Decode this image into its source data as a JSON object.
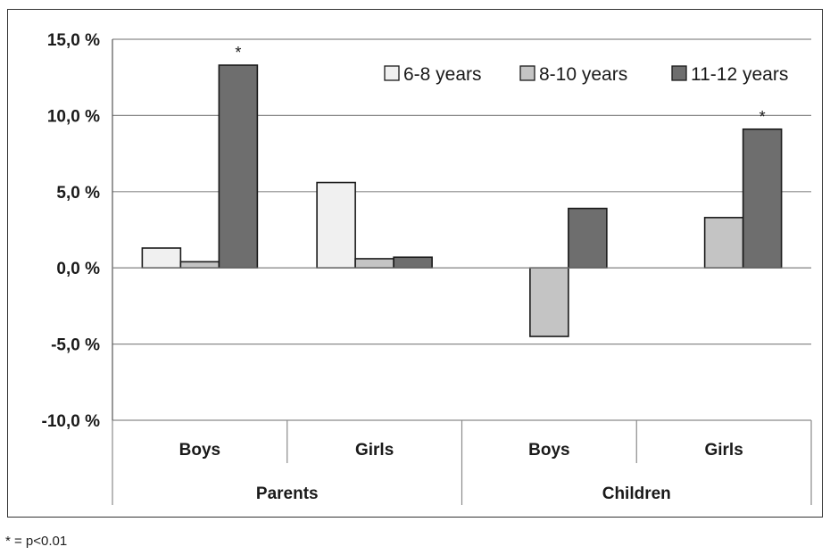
{
  "chart_data": {
    "type": "bar",
    "groups": [
      {
        "label": "Parents",
        "categories": [
          "Boys",
          "Girls"
        ]
      },
      {
        "label": "Children",
        "categories": [
          "Boys",
          "Girls"
        ]
      }
    ],
    "categories": [
      "Boys",
      "Girls",
      "Boys",
      "Girls"
    ],
    "series": [
      {
        "name": "6-8 years",
        "color": "#f0f0f0",
        "values": [
          1.3,
          5.6,
          null,
          null
        ]
      },
      {
        "name": "8-10 years",
        "color": "#c4c4c4",
        "values": [
          0.4,
          0.6,
          -4.5,
          3.3
        ]
      },
      {
        "name": "11-12 years",
        "color": "#6e6e6e",
        "values": [
          13.3,
          0.7,
          3.9,
          9.1
        ]
      }
    ],
    "ylim": [
      -10,
      15
    ],
    "yticks": [
      -10,
      -5,
      0,
      5,
      10,
      15
    ],
    "ytick_labels": [
      "-10,0 %",
      "-5,0 %",
      "0,0 %",
      "5,0 %",
      "10,0 %",
      "15,0 %"
    ],
    "grid": true,
    "legend_position": "top-right",
    "annotations": [
      {
        "text": "*",
        "category_index": 0,
        "series_index": 2
      },
      {
        "text": "*",
        "category_index": 3,
        "series_index": 2
      }
    ],
    "title": "",
    "xlabel": "",
    "ylabel": ""
  },
  "footnote": "* = p<0.01"
}
